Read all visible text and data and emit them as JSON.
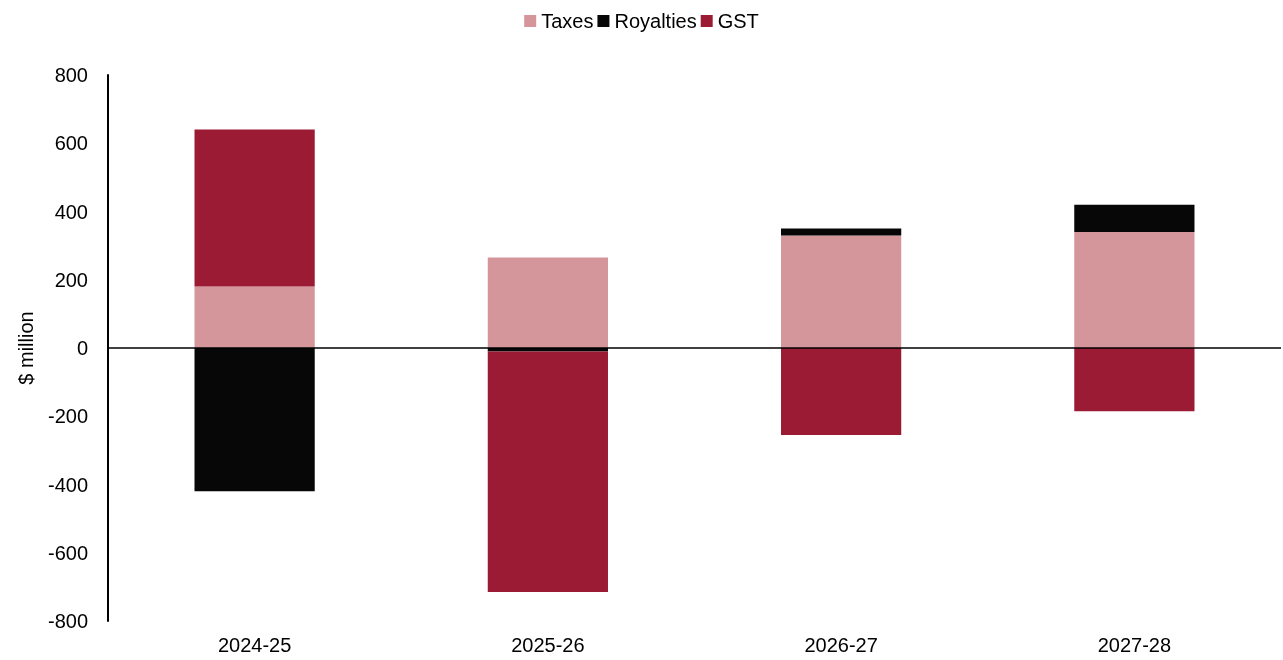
{
  "chart_data": {
    "type": "bar",
    "stacked": true,
    "ylabel": "$ million",
    "categories": [
      "2024-25",
      "2025-26",
      "2026-27",
      "2027-28"
    ],
    "series": [
      {
        "name": "Taxes",
        "color": "#d4969a",
        "values": [
          180,
          265,
          330,
          340
        ]
      },
      {
        "name": "Royalties",
        "color": "#070707",
        "values": [
          -420,
          -10,
          20,
          80
        ]
      },
      {
        "name": "GST",
        "color": "#9b1b34",
        "values": [
          460,
          -705,
          -255,
          -185
        ]
      }
    ],
    "ylim": [
      -800,
      800
    ],
    "yticks": [
      -800,
      -600,
      -400,
      -200,
      0,
      200,
      400,
      600,
      800
    ],
    "ref_lines": [
      {
        "axis": "y",
        "value": 0,
        "color": "#000000",
        "line_style": "solid"
      }
    ],
    "grid": false,
    "legend": "top"
  }
}
